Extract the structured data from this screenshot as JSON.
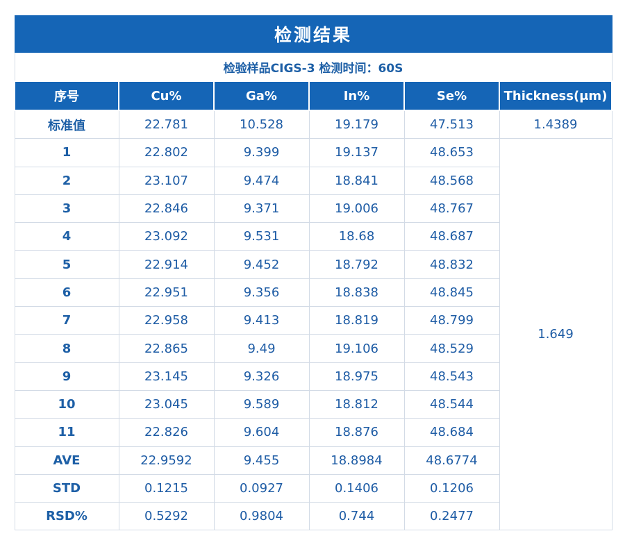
{
  "title": "检测结果",
  "subtitle": "检验样品CIGS-3  检测时间：60S",
  "columns": [
    "序号",
    "Cu%",
    "Ga%",
    "In%",
    "Se%",
    "Thickness(μm)"
  ],
  "standard": {
    "label": "标准值",
    "cu": "22.781",
    "ga": "10.528",
    "in": "19.179",
    "se": "47.513",
    "thickness": "1.4389"
  },
  "measured_thickness": "1.649",
  "rows": [
    {
      "label": "1",
      "cu": "22.802",
      "ga": "9.399",
      "in": "19.137",
      "se": "48.653"
    },
    {
      "label": "2",
      "cu": "23.107",
      "ga": "9.474",
      "in": "18.841",
      "se": "48.568"
    },
    {
      "label": "3",
      "cu": "22.846",
      "ga": "9.371",
      "in": "19.006",
      "se": "48.767"
    },
    {
      "label": "4",
      "cu": "23.092",
      "ga": "9.531",
      "in": "18.68",
      "se": "48.687"
    },
    {
      "label": "5",
      "cu": "22.914",
      "ga": "9.452",
      "in": "18.792",
      "se": "48.832"
    },
    {
      "label": "6",
      "cu": "22.951",
      "ga": "9.356",
      "in": "18.838",
      "se": "48.845"
    },
    {
      "label": "7",
      "cu": "22.958",
      "ga": "9.413",
      "in": "18.819",
      "se": "48.799"
    },
    {
      "label": "8",
      "cu": "22.865",
      "ga": "9.49",
      "in": "19.106",
      "se": "48.529"
    },
    {
      "label": "9",
      "cu": "23.145",
      "ga": "9.326",
      "in": "18.975",
      "se": "48.543"
    },
    {
      "label": "10",
      "cu": "23.045",
      "ga": "9.589",
      "in": "18.812",
      "se": "48.544"
    },
    {
      "label": "11",
      "cu": "22.826",
      "ga": "9.604",
      "in": "18.876",
      "se": "48.684"
    },
    {
      "label": "AVE",
      "cu": "22.9592",
      "ga": "9.455",
      "in": "18.8984",
      "se": "48.6774"
    },
    {
      "label": "STD",
      "cu": "0.1215",
      "ga": "0.0927",
      "in": "0.1406",
      "se": "0.1206"
    },
    {
      "label": "RSD%",
      "cu": "0.5292",
      "ga": "0.9804",
      "in": "0.744",
      "se": "0.2477"
    }
  ],
  "colors": {
    "header_bg": "#1565b6",
    "text_blue": "#1e5ca5",
    "border": "#d3dbe6"
  }
}
